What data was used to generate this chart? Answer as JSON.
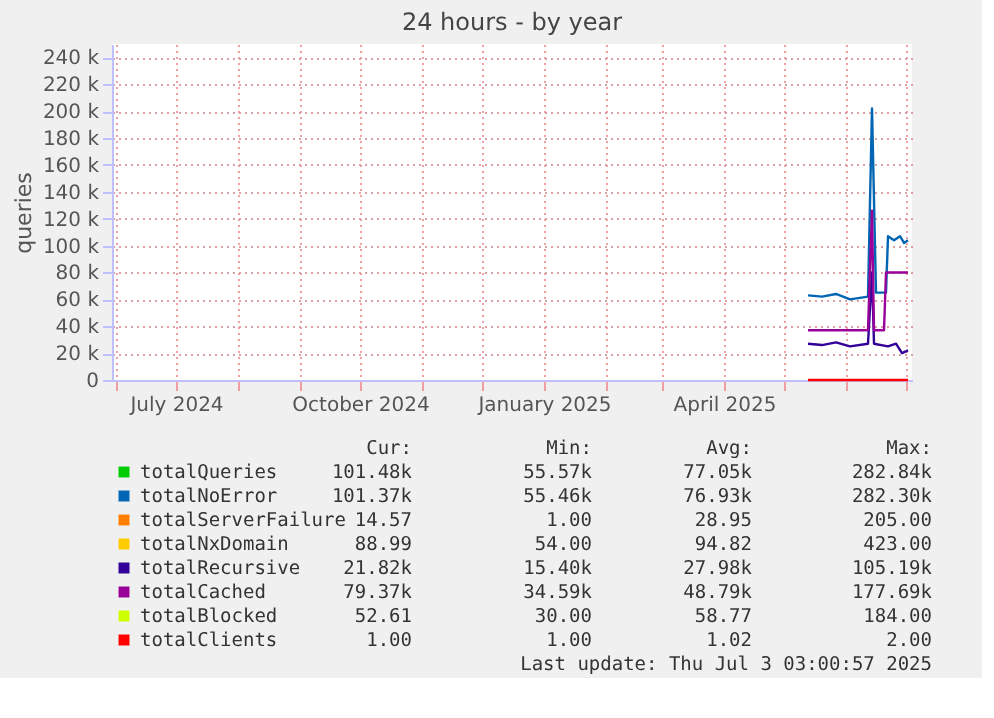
{
  "chart_data": {
    "type": "line",
    "title": "24 hours - by year",
    "ylabel": "queries",
    "xlim": [
      "2024-05-30",
      "2025-07-04"
    ],
    "xticks": [
      {
        "value": "2024-06-01",
        "label": null
      },
      {
        "value": "2024-07-01",
        "label": "July 2024"
      },
      {
        "value": "2024-08-01",
        "label": null
      },
      {
        "value": "2024-09-01",
        "label": null
      },
      {
        "value": "2024-10-01",
        "label": "October 2024"
      },
      {
        "value": "2024-11-01",
        "label": null
      },
      {
        "value": "2024-12-01",
        "label": null
      },
      {
        "value": "2025-01-01",
        "label": "January 2025"
      },
      {
        "value": "2025-02-01",
        "label": null
      },
      {
        "value": "2025-03-01",
        "label": null
      },
      {
        "value": "2025-04-01",
        "label": "April 2025"
      },
      {
        "value": "2025-05-01",
        "label": null
      },
      {
        "value": "2025-06-01",
        "label": null
      },
      {
        "value": "2025-07-01",
        "label": null
      }
    ],
    "ylim": [
      0,
      250000
    ],
    "yticks": [
      {
        "value": 0,
        "label": "0"
      },
      {
        "value": 20000,
        "label": "20 k"
      },
      {
        "value": 40000,
        "label": "40 k"
      },
      {
        "value": 60000,
        "label": "60 k"
      },
      {
        "value": 80000,
        "label": "80 k"
      },
      {
        "value": 100000,
        "label": "100 k"
      },
      {
        "value": 120000,
        "label": "120 k"
      },
      {
        "value": 140000,
        "label": "140 k"
      },
      {
        "value": 160000,
        "label": "160 k"
      },
      {
        "value": 180000,
        "label": "180 k"
      },
      {
        "value": 200000,
        "label": "200 k"
      },
      {
        "value": 220000,
        "label": "220 k"
      },
      {
        "value": 240000,
        "label": "240 k"
      }
    ],
    "grid": true,
    "legend": "bottom",
    "series": [
      {
        "name": "totalQueries",
        "color": "#00cc00"
      },
      {
        "name": "totalNoError",
        "color": "#0066b3",
        "x": [
          "2025-05-13",
          "2025-05-20",
          "2025-05-27",
          "2025-06-03",
          "2025-06-12",
          "2025-06-14",
          "2025-06-16",
          "2025-06-21",
          "2025-06-22",
          "2025-06-25",
          "2025-06-28",
          "2025-06-30",
          "2025-07-02"
        ],
        "values": [
          63000,
          62000,
          64000,
          60000,
          62000,
          202000,
          65000,
          65000,
          107000,
          104000,
          107000,
          102000,
          104000
        ]
      },
      {
        "name": "totalServerFailure",
        "color": "#ff8000"
      },
      {
        "name": "totalNxDomain",
        "color": "#ffcc00"
      },
      {
        "name": "totalRecursive",
        "color": "#330099",
        "x": [
          "2025-05-13",
          "2025-05-20",
          "2025-05-27",
          "2025-06-03",
          "2025-06-12",
          "2025-06-14",
          "2025-06-15",
          "2025-06-22",
          "2025-06-26",
          "2025-06-29",
          "2025-07-02"
        ],
        "values": [
          27000,
          26000,
          28000,
          25000,
          27000,
          80000,
          27000,
          25000,
          27000,
          20000,
          22000
        ]
      },
      {
        "name": "totalCached",
        "color": "#990099",
        "x": [
          "2025-05-13",
          "2025-06-12",
          "2025-06-14",
          "2025-06-15",
          "2025-06-20",
          "2025-06-21",
          "2025-07-02"
        ],
        "values": [
          37000,
          37000,
          126000,
          37000,
          37000,
          80000,
          80000
        ]
      },
      {
        "name": "totalBlocked",
        "color": "#ccff00"
      },
      {
        "name": "totalClients",
        "color": "#ff0000",
        "x": [
          "2025-05-13",
          "2025-07-02"
        ],
        "values": [
          0,
          0
        ]
      }
    ],
    "annotations": [
      "Cur:",
      "Min:",
      "Avg:",
      "Max:",
      "101.48k",
      "55.57k",
      "77.05k",
      "282.84k",
      "101.37k",
      "55.46k",
      "76.93k",
      "282.30k",
      "14.57",
      "1.00",
      "28.95",
      "205.00",
      "88.99",
      "54.00",
      "94.82",
      "423.00",
      "21.82k",
      "15.40k",
      "27.98k",
      "105.19k",
      "79.37k",
      "34.59k",
      "48.79k",
      "177.69k",
      "52.61",
      "30.00",
      "58.77",
      "184.00",
      "1.00",
      "1.00",
      "1.02",
      "2.00",
      "Last update: Thu Jul  3 03:00:57 2025"
    ]
  }
}
